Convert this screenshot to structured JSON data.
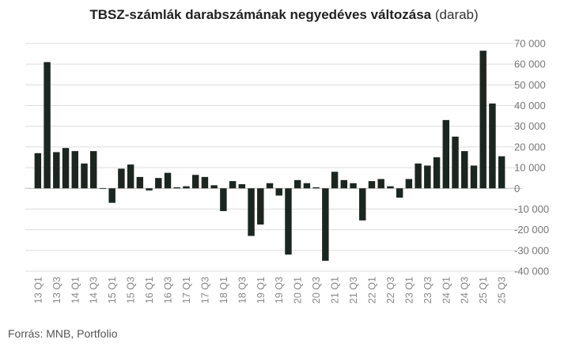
{
  "title": {
    "main": "TBSZ-számlák darabszámának negyedéves változása",
    "unit": "(darab)"
  },
  "source": "Forrás: MNB, Portfolio",
  "colors": {
    "bar": "#1c2620",
    "grid": "#dddddd",
    "zero_line": "#bbbbbb"
  },
  "chart_data": {
    "type": "bar",
    "ylim": [
      -40000,
      70000
    ],
    "y_ticks": [
      70000,
      60000,
      50000,
      40000,
      30000,
      20000,
      10000,
      0,
      -10000,
      -20000,
      -30000,
      -40000
    ],
    "y_tick_labels": [
      "70 000",
      "60 000",
      "50 000",
      "40 000",
      "30 000",
      "20 000",
      "10 000",
      "0",
      "-10 000",
      "-20 000",
      "-30 000",
      "-40 000"
    ],
    "grid": true,
    "categories": [
      "13 Q1",
      "13 Q2",
      "13 Q3",
      "13 Q4",
      "14 Q1",
      "14 Q2",
      "14 Q3",
      "14 Q4",
      "15 Q1",
      "15 Q2",
      "15 Q3",
      "15 Q4",
      "16 Q1",
      "16 Q2",
      "16 Q3",
      "16 Q4",
      "17 Q1",
      "17 Q2",
      "17 Q3",
      "17 Q4",
      "18 Q1",
      "18 Q2",
      "18 Q3",
      "18 Q4",
      "19 Q1",
      "19 Q2",
      "19 Q3",
      "19 Q4",
      "20 Q1",
      "20 Q2",
      "20 Q3",
      "20 Q4",
      "21 Q1",
      "21 Q2",
      "21 Q3",
      "21 Q4",
      "22 Q1",
      "22 Q2",
      "22 Q3",
      "22 Q4",
      "23 Q1",
      "23 Q2",
      "23 Q3",
      "23 Q4",
      "24 Q1",
      "24 Q2",
      "24 Q3",
      "24 Q4",
      "25 Q1",
      "25 Q2",
      "25 Q3"
    ],
    "tick_labels": [
      "13 Q1",
      "13 Q3",
      "14 Q1",
      "14 Q3",
      "15 Q1",
      "15 Q3",
      "16 Q1",
      "16 Q3",
      "17 Q1",
      "17 Q3",
      "18 Q1",
      "18 Q3",
      "19 Q1",
      "19 Q3",
      "20 Q1",
      "20 Q3",
      "21 Q1",
      "21 Q3",
      "22 Q1",
      "22 Q3",
      "23 Q1",
      "23 Q3",
      "24 Q1",
      "24 Q3",
      "25 Q1",
      "25 Q3"
    ],
    "values": [
      17000,
      61000,
      17500,
      19500,
      18000,
      12000,
      18000,
      0,
      -7000,
      9500,
      11500,
      5500,
      -1000,
      5000,
      7500,
      500,
      1000,
      6500,
      5500,
      1500,
      -11000,
      3500,
      2000,
      -23000,
      -17500,
      2500,
      -3500,
      -32000,
      4000,
      2500,
      500,
      -35000,
      8000,
      4000,
      2500,
      -15500,
      3500,
      4500,
      1000,
      -4500,
      4500,
      12000,
      11000,
      15000,
      33000,
      25000,
      18000,
      11000,
      66500,
      41000,
      15500
    ]
  }
}
